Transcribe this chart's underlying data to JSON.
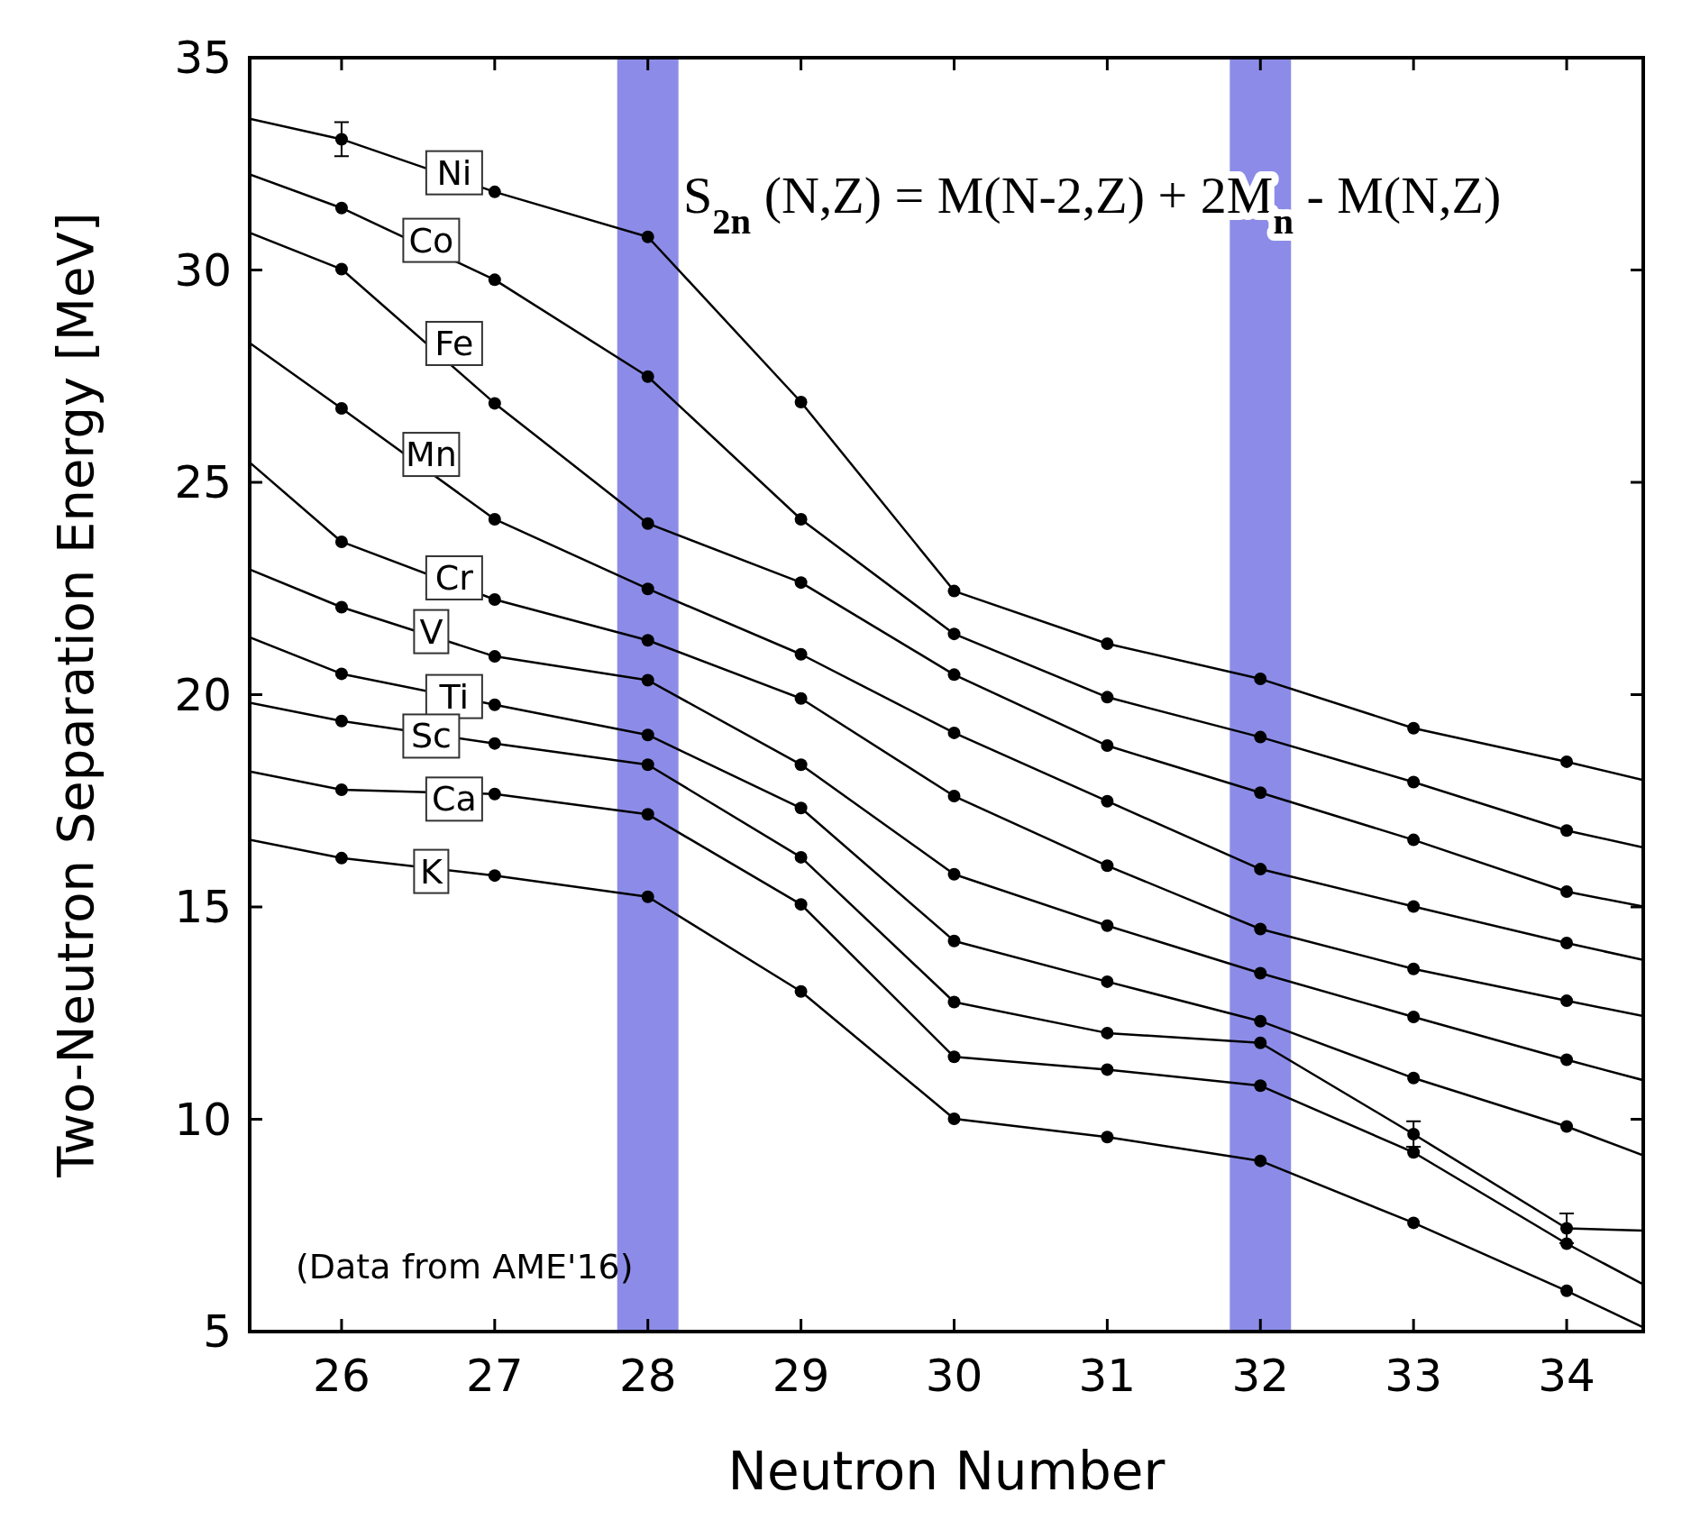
{
  "chart_data": {
    "type": "line",
    "xlabel": "Neutron Number",
    "ylabel": "Two-Neutron Separation Energy [MeV]",
    "xlim": [
      25.4,
      34.5
    ],
    "ylim": [
      5,
      35
    ],
    "xticks": [
      26,
      27,
      28,
      29,
      30,
      31,
      32,
      33,
      34
    ],
    "yticks": [
      5,
      10,
      15,
      20,
      25,
      30,
      35
    ],
    "grid": false,
    "marker": "circle",
    "line_style": "solid",
    "x": [
      25.4,
      26,
      27,
      28,
      29,
      30,
      31,
      32,
      33,
      34,
      34.5
    ],
    "series": [
      {
        "name": "Ni",
        "color": "#000000",
        "values": [
          33.56,
          33.08,
          31.84,
          30.78,
          26.89,
          22.44,
          21.2,
          20.37,
          19.21,
          18.42,
          17.99
        ],
        "errors": [
          null,
          0.4,
          null,
          null,
          null,
          null,
          null,
          null,
          null,
          null,
          null
        ]
      },
      {
        "name": "Co",
        "color": "#000000",
        "values": [
          32.25,
          31.46,
          29.77,
          27.49,
          24.13,
          21.43,
          19.94,
          19.0,
          17.94,
          16.8,
          16.4
        ]
      },
      {
        "name": "Fe",
        "color": "#000000",
        "values": [
          30.88,
          30.02,
          26.86,
          24.03,
          22.64,
          20.47,
          18.8,
          17.69,
          16.58,
          15.36,
          15.01
        ]
      },
      {
        "name": "Mn",
        "color": "#000000",
        "values": [
          28.28,
          26.74,
          24.13,
          22.49,
          20.95,
          19.1,
          17.49,
          15.89,
          15.01,
          14.15,
          13.75
        ]
      },
      {
        "name": "Cr",
        "color": "#000000",
        "values": [
          25.47,
          23.6,
          22.24,
          21.28,
          19.91,
          17.61,
          15.97,
          14.48,
          13.54,
          12.79,
          12.43
        ]
      },
      {
        "name": "V",
        "color": "#000000",
        "values": [
          22.95,
          22.06,
          20.9,
          20.34,
          18.35,
          15.77,
          14.56,
          13.44,
          12.41,
          11.4,
          10.92
        ]
      },
      {
        "name": "Ti",
        "color": "#000000",
        "values": [
          21.35,
          20.49,
          19.76,
          19.05,
          17.33,
          14.2,
          13.24,
          12.31,
          10.97,
          9.83,
          9.15
        ]
      },
      {
        "name": "Sc",
        "color": "#000000",
        "values": [
          19.81,
          19.38,
          18.85,
          18.35,
          16.17,
          12.76,
          12.03,
          11.8,
          9.65,
          7.43,
          7.38
        ],
        "errors": [
          null,
          null,
          null,
          null,
          null,
          null,
          null,
          null,
          0.3,
          0.35,
          null
        ]
      },
      {
        "name": "Ca",
        "color": "#000000",
        "values": [
          18.19,
          17.76,
          17.66,
          17.18,
          15.06,
          11.47,
          11.17,
          10.79,
          9.22,
          7.07,
          6.11
        ]
      },
      {
        "name": "K",
        "color": "#000000",
        "values": [
          16.58,
          16.15,
          15.74,
          15.24,
          13.01,
          10.01,
          9.58,
          9.02,
          7.56,
          5.96,
          5.1
        ]
      }
    ],
    "bands": [
      {
        "axis": "x",
        "from": 27.8,
        "to": 28.2,
        "color": "#8c8ce8"
      },
      {
        "axis": "x",
        "from": 31.8,
        "to": 32.2,
        "color": "#8c8ce8"
      }
    ],
    "annotations": [
      "S$_{2n}$ (N,Z) = M(N-2,Z) + 2M$_{n}$ - M(N,Z)",
      "(Data from AME'16)"
    ]
  }
}
